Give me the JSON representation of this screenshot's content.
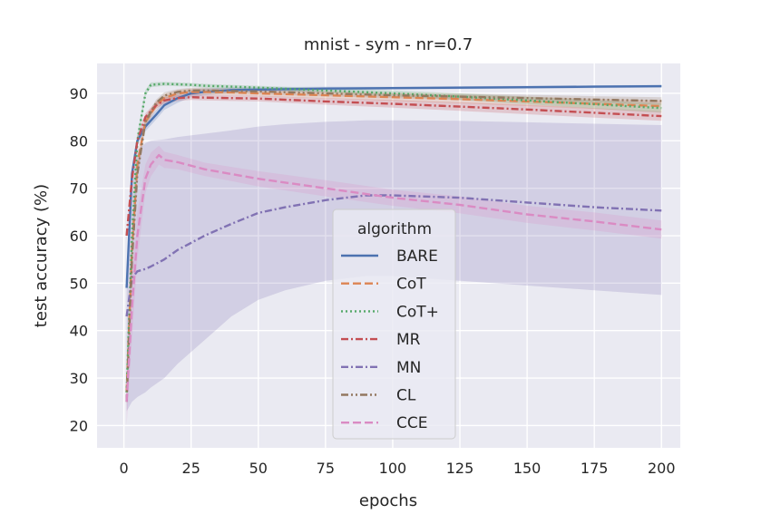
{
  "chart_data": {
    "type": "line",
    "title": "mnist - sym - nr=0.7",
    "xlabel": "epochs",
    "ylabel": "test accuracy (%)",
    "xlim": [
      -10,
      207
    ],
    "ylim": [
      15.3,
      96.3
    ],
    "xticks": [
      0,
      25,
      50,
      75,
      100,
      125,
      150,
      175,
      200
    ],
    "yticks": [
      20,
      30,
      40,
      50,
      60,
      70,
      80,
      90
    ],
    "grid": true,
    "legend": {
      "title": "algorithm",
      "placement": "center"
    },
    "series": [
      {
        "name": "BARE",
        "color": "#4c72b0",
        "dash": "solid",
        "x": [
          1,
          3,
          5,
          8,
          12,
          15,
          20,
          25,
          30,
          40,
          50,
          75,
          100,
          125,
          150,
          175,
          200
        ],
        "y": [
          49,
          73,
          80,
          83,
          85.5,
          87.5,
          89,
          90,
          90.3,
          90.7,
          90.8,
          91.0,
          91.1,
          91.2,
          91.3,
          91.4,
          91.5
        ],
        "lower": [
          48,
          72,
          79,
          82,
          84.5,
          86.5,
          88,
          89.2,
          89.6,
          90.1,
          90.3,
          90.6,
          90.8,
          90.9,
          91.0,
          91.1,
          91.2
        ],
        "upper": [
          50,
          74,
          81,
          84,
          86.5,
          88.5,
          90,
          90.8,
          91.0,
          91.3,
          91.3,
          91.4,
          91.4,
          91.5,
          91.6,
          91.7,
          91.8
        ]
      },
      {
        "name": "CoT",
        "color": "#dd8452",
        "dash": "dashed",
        "x": [
          1,
          3,
          5,
          8,
          12,
          15,
          20,
          25,
          30,
          40,
          50,
          75,
          100,
          125,
          150,
          175,
          200
        ],
        "y": [
          27,
          57,
          75,
          84,
          87.5,
          89,
          90,
          90.3,
          90.3,
          90.2,
          90.0,
          89.6,
          89.2,
          88.8,
          88.3,
          87.8,
          87.3
        ],
        "lower": [
          26,
          55,
          73.5,
          83,
          86.7,
          88.2,
          89.3,
          89.6,
          89.7,
          89.6,
          89.4,
          88.9,
          88.4,
          87.9,
          87.3,
          86.7,
          86.1
        ],
        "upper": [
          28,
          59,
          76.5,
          85,
          88.3,
          89.8,
          90.7,
          91.0,
          91.0,
          90.8,
          90.6,
          90.3,
          90.0,
          89.7,
          89.3,
          88.9,
          88.5
        ]
      },
      {
        "name": "CoT+",
        "color": "#55a868",
        "dash": "dotted",
        "x": [
          1,
          3,
          5,
          8,
          10,
          15,
          20,
          25,
          30,
          40,
          50,
          75,
          100,
          125,
          150,
          175,
          200
        ],
        "y": [
          27,
          60,
          80,
          90,
          91.8,
          92.0,
          91.9,
          91.8,
          91.6,
          91.4,
          91.2,
          90.6,
          90.0,
          89.3,
          88.5,
          87.7,
          86.9
        ],
        "lower": [
          26,
          58,
          78.5,
          89.3,
          91.3,
          91.6,
          91.5,
          91.4,
          91.2,
          91.0,
          90.8,
          90.1,
          89.4,
          88.6,
          87.7,
          86.8,
          85.9
        ],
        "upper": [
          28,
          62,
          81.5,
          90.7,
          92.3,
          92.4,
          92.3,
          92.2,
          92.0,
          91.8,
          91.6,
          91.1,
          90.6,
          90.0,
          89.3,
          88.6,
          87.9
        ]
      },
      {
        "name": "MR",
        "color": "#c44e52",
        "dash": "dashdot",
        "x": [
          1,
          3,
          5,
          8,
          12,
          15,
          20,
          25,
          30,
          40,
          50,
          75,
          100,
          125,
          150,
          175,
          200
        ],
        "y": [
          60,
          72,
          80,
          85,
          87.5,
          88.5,
          89,
          89.2,
          89.1,
          89.0,
          88.9,
          88.3,
          87.8,
          87.2,
          86.6,
          85.9,
          85.2
        ],
        "lower": [
          59,
          71,
          79,
          84.2,
          86.8,
          87.8,
          88.4,
          88.6,
          88.5,
          88.4,
          88.3,
          87.6,
          87.0,
          86.3,
          85.6,
          84.9,
          84.2
        ],
        "upper": [
          61,
          73,
          81,
          85.8,
          88.2,
          89.2,
          89.6,
          89.8,
          89.7,
          89.6,
          89.5,
          89.0,
          88.6,
          88.1,
          87.6,
          86.9,
          86.2
        ]
      },
      {
        "name": "MN",
        "color": "#8172b3",
        "dash": "dashdot",
        "x": [
          1,
          3,
          5,
          8,
          10,
          15,
          20,
          30,
          40,
          50,
          60,
          75,
          90,
          100,
          125,
          150,
          175,
          200
        ],
        "y": [
          43,
          51,
          52.5,
          53,
          53.5,
          55,
          57,
          60,
          62.5,
          64.8,
          66,
          67.5,
          68.5,
          68.5,
          68,
          67,
          66,
          65.3
        ],
        "lower": [
          23,
          25,
          26,
          27,
          28,
          30,
          33,
          38,
          43,
          46.5,
          48.5,
          50.5,
          51.5,
          51.5,
          50.5,
          49.5,
          48.5,
          47.5
        ],
        "upper": [
          48,
          71,
          78,
          79.5,
          80,
          80.3,
          80.8,
          81.5,
          82.2,
          83,
          83.5,
          84,
          84.3,
          84.3,
          84.2,
          83.9,
          83.6,
          83.3
        ]
      },
      {
        "name": "CL",
        "color": "#937860",
        "dash": "dashdotdot",
        "x": [
          1,
          3,
          5,
          8,
          12,
          15,
          20,
          25,
          30,
          40,
          50,
          75,
          100,
          125,
          150,
          175,
          200
        ],
        "y": [
          25,
          55,
          73,
          84,
          88,
          89.5,
          90.3,
          90.6,
          90.6,
          90.5,
          90.4,
          90.0,
          89.6,
          89.3,
          89.0,
          88.7,
          88.4
        ],
        "lower": [
          24,
          53,
          71.5,
          83,
          87.3,
          88.8,
          89.7,
          90.0,
          90.0,
          89.9,
          89.8,
          89.4,
          89.0,
          88.6,
          88.3,
          88.0,
          87.6
        ],
        "upper": [
          26,
          57,
          74.5,
          85,
          88.7,
          90.2,
          90.9,
          91.2,
          91.2,
          91.1,
          91.0,
          90.6,
          90.2,
          90.0,
          89.7,
          89.4,
          89.2
        ]
      },
      {
        "name": "CCE",
        "color": "#da8bc3",
        "dash": "dashed",
        "x": [
          1,
          3,
          5,
          8,
          10,
          13,
          15,
          20,
          30,
          40,
          50,
          75,
          100,
          125,
          150,
          175,
          200
        ],
        "y": [
          25,
          45,
          60,
          72,
          75,
          77,
          76,
          75.5,
          74,
          73,
          72,
          70,
          68,
          66.5,
          64.5,
          63,
          61.3
        ],
        "lower": [
          20,
          38,
          55,
          69,
          72.5,
          75,
          74.3,
          74,
          72.6,
          71.5,
          70.4,
          68.3,
          66.3,
          64.7,
          62.7,
          61.1,
          59.4
        ],
        "upper": [
          30,
          52,
          65,
          75,
          77.5,
          79,
          77.7,
          77,
          75.4,
          74.5,
          73.6,
          71.7,
          69.7,
          68.3,
          66.3,
          64.9,
          63.2
        ]
      }
    ]
  }
}
